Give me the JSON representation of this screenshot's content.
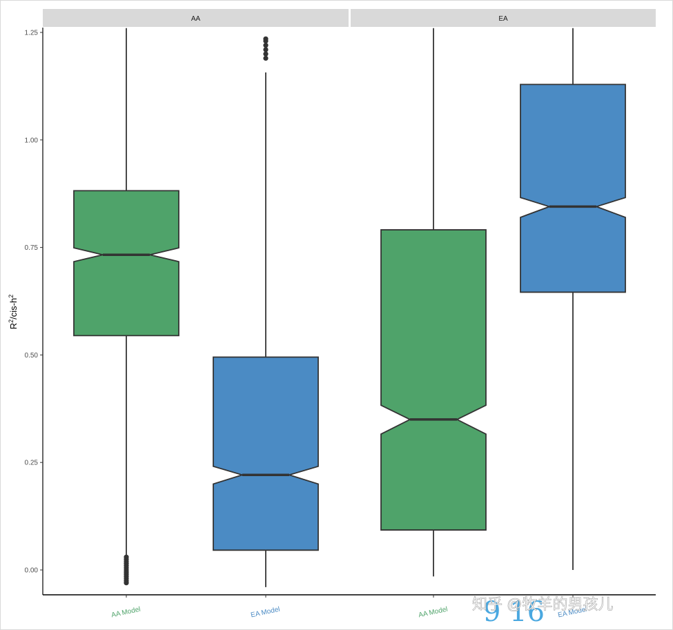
{
  "chart_data": {
    "type": "boxplot",
    "notched": true,
    "ylabel": "R²/cis-h²",
    "ylabel_main": "R",
    "ylabel_sup1": "2",
    "ylabel_mid": "/cis-h",
    "ylabel_sup2": "2",
    "ylim": [
      -0.06,
      1.26
    ],
    "yticks": [
      0.0,
      0.25,
      0.5,
      0.75,
      1.0,
      1.25
    ],
    "ytick_labels": [
      "0.00",
      "0.25",
      "0.50",
      "0.75",
      "1.00",
      "1.25"
    ],
    "categories": [
      "AA Model",
      "EA Model"
    ],
    "colors": {
      "AA Model": "#4fa36a",
      "EA Model": "#4b8bc4"
    },
    "legend": "none",
    "grid": false,
    "facets": [
      {
        "label": "AA",
        "boxes": [
          {
            "category": "AA Model",
            "whisker_low": -0.03,
            "q1": 0.545,
            "median": 0.733,
            "q3": 0.882,
            "whisker_high": 1.26,
            "notch_low": 0.717,
            "notch_high": 0.749,
            "outliers": [
              -0.03,
              -0.025,
              -0.02,
              -0.015,
              -0.01,
              -0.005,
              0.0,
              0.005,
              0.01,
              0.015,
              0.02,
              0.025,
              0.03
            ]
          },
          {
            "category": "EA Model",
            "whisker_low": -0.04,
            "q1": 0.046,
            "median": 0.221,
            "q3": 0.495,
            "whisker_high": 1.157,
            "notch_low": 0.2,
            "notch_high": 0.241,
            "outliers": [
              1.19,
              1.2,
              1.21,
              1.22,
              1.23,
              1.235
            ]
          }
        ]
      },
      {
        "label": "EA",
        "boxes": [
          {
            "category": "AA Model",
            "whisker_low": -0.015,
            "q1": 0.093,
            "median": 0.35,
            "q3": 0.791,
            "whisker_high": 1.26,
            "notch_low": 0.316,
            "notch_high": 0.383,
            "outliers": []
          },
          {
            "category": "EA Model",
            "whisker_low": 0.0,
            "q1": 0.646,
            "median": 0.845,
            "q3": 1.129,
            "whisker_high": 1.26,
            "notch_low": 0.82,
            "notch_high": 0.866,
            "outliers": []
          }
        ]
      }
    ]
  },
  "watermark": {
    "text": "知乎 @牧羊的男孩儿",
    "number": "9 16"
  }
}
